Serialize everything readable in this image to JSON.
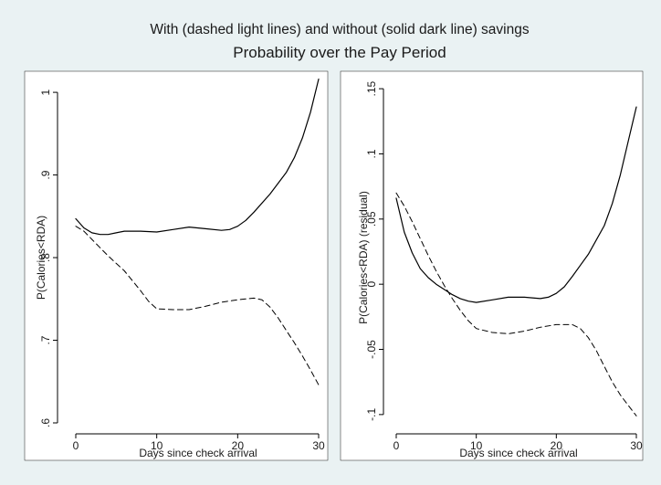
{
  "figure": {
    "title": "With (dashed light lines) and without (solid dark line) savings",
    "subtitle": "Probability over the Pay Period"
  },
  "chart_data": [
    {
      "type": "line",
      "xlabel": "Days since check arrival",
      "ylabel": "P(Calories<RDA)",
      "xlim": [
        0,
        30
      ],
      "ylim": [
        0.6,
        1.02
      ],
      "xticks": [
        0,
        10,
        20,
        30
      ],
      "xtick_labels": [
        "0",
        "10",
        "20",
        "30"
      ],
      "yticks": [
        0.6,
        0.7,
        0.8,
        0.9,
        1.0
      ],
      "ytick_labels": [
        ".6",
        ".7",
        ".8",
        ".9",
        "1"
      ],
      "grid": false,
      "series": [
        {
          "style": "solid",
          "color": "#000000",
          "x": [
            0,
            1,
            2,
            3,
            4,
            5,
            6,
            8,
            10,
            12,
            14,
            16,
            18,
            19,
            20,
            21,
            22,
            24,
            26,
            27,
            28,
            29,
            30
          ],
          "y": [
            0.847,
            0.836,
            0.83,
            0.828,
            0.828,
            0.83,
            0.832,
            0.832,
            0.831,
            0.834,
            0.837,
            0.835,
            0.833,
            0.834,
            0.838,
            0.845,
            0.855,
            0.877,
            0.903,
            0.921,
            0.945,
            0.976,
            1.016
          ]
        },
        {
          "style": "dashed",
          "color": "#000000",
          "x": [
            0,
            1,
            2,
            3,
            4,
            5,
            6,
            7,
            8,
            9,
            10,
            12,
            14,
            16,
            18,
            20,
            22,
            23,
            24,
            25,
            26,
            27,
            28,
            29,
            30
          ],
          "y": [
            0.838,
            0.832,
            0.822,
            0.812,
            0.802,
            0.793,
            0.784,
            0.772,
            0.76,
            0.747,
            0.738,
            0.737,
            0.737,
            0.741,
            0.746,
            0.749,
            0.751,
            0.749,
            0.74,
            0.727,
            0.712,
            0.697,
            0.681,
            0.664,
            0.646
          ]
        }
      ]
    },
    {
      "type": "line",
      "xlabel": "Days since check arrival",
      "ylabel": "P(Calories<RDA) (residual)",
      "xlim": [
        0,
        30
      ],
      "ylim": [
        -0.105,
        0.155
      ],
      "xticks": [
        0,
        10,
        20,
        30
      ],
      "xtick_labels": [
        "0",
        "10",
        "20",
        "30"
      ],
      "yticks": [
        -0.1,
        -0.05,
        0,
        0.05,
        0.1,
        0.15
      ],
      "ytick_labels": [
        "-.1",
        "-.05",
        "0",
        ".05",
        ".1",
        ".15"
      ],
      "grid": false,
      "series": [
        {
          "style": "solid",
          "color": "#000000",
          "x": [
            0,
            1,
            2,
            3,
            4,
            5,
            6,
            7,
            8,
            9,
            10,
            12,
            14,
            16,
            18,
            19,
            20,
            21,
            22,
            24,
            26,
            27,
            28,
            29,
            30
          ],
          "y": [
            0.066,
            0.04,
            0.024,
            0.012,
            0.005,
            0.0,
            -0.004,
            -0.008,
            -0.011,
            -0.013,
            -0.014,
            -0.012,
            -0.01,
            -0.01,
            -0.011,
            -0.01,
            -0.007,
            -0.002,
            0.006,
            0.023,
            0.045,
            0.062,
            0.084,
            0.11,
            0.136
          ]
        },
        {
          "style": "dashed",
          "color": "#000000",
          "x": [
            0,
            1,
            2,
            3,
            4,
            5,
            6,
            7,
            8,
            9,
            10,
            12,
            14,
            16,
            18,
            20,
            22,
            23,
            24,
            25,
            26,
            27,
            28,
            29,
            30
          ],
          "y": [
            0.07,
            0.06,
            0.048,
            0.035,
            0.022,
            0.01,
            -0.001,
            -0.011,
            -0.02,
            -0.028,
            -0.034,
            -0.037,
            -0.038,
            -0.036,
            -0.033,
            -0.031,
            -0.031,
            -0.034,
            -0.041,
            -0.051,
            -0.063,
            -0.075,
            -0.085,
            -0.093,
            -0.101
          ]
        }
      ]
    }
  ]
}
